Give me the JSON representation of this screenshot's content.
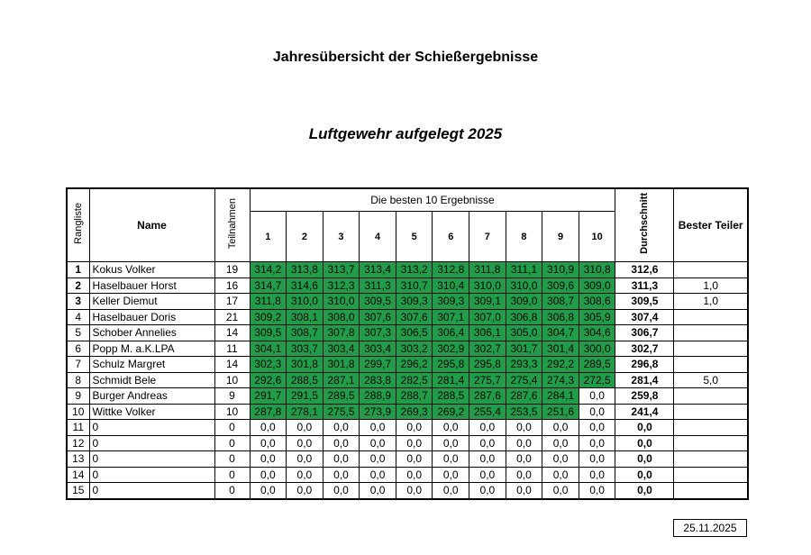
{
  "title": "Jahresübersicht der Schießergebnisse",
  "subtitle": "Luftgewehr aufgelegt 2025",
  "headers": {
    "rank": "Rangliste",
    "name": "Name",
    "participations": "Teilnahmen",
    "best10": "Die besten 10 Ergebnisse",
    "cols": [
      "1",
      "2",
      "3",
      "4",
      "5",
      "6",
      "7",
      "8",
      "9",
      "10"
    ],
    "average": "Durchschnitt",
    "best_teiler": "Bester Teiler"
  },
  "highlight_color": "#1f9e4a",
  "rows": [
    {
      "rank": "1",
      "name": "Kokus Volker",
      "count": "19",
      "scores": [
        "314,2",
        "313,8",
        "313,7",
        "313,4",
        "313,2",
        "312,8",
        "311,8",
        "311,1",
        "310,9",
        "310,8"
      ],
      "avg": "312,6",
      "teiler": ""
    },
    {
      "rank": "2",
      "name": "Haselbauer Horst",
      "count": "16",
      "scores": [
        "314,7",
        "314,6",
        "312,3",
        "311,3",
        "310,7",
        "310,4",
        "310,0",
        "310,0",
        "309,6",
        "309,0"
      ],
      "avg": "311,3",
      "teiler": "1,0"
    },
    {
      "rank": "3",
      "name": "Keller Diemut",
      "count": "17",
      "scores": [
        "311,8",
        "310,0",
        "310,0",
        "309,5",
        "309,3",
        "309,3",
        "309,1",
        "309,0",
        "308,7",
        "308,6"
      ],
      "avg": "309,5",
      "teiler": "1,0"
    },
    {
      "rank": "4",
      "name": "Haselbauer Doris",
      "count": "21",
      "scores": [
        "309,2",
        "308,1",
        "308,0",
        "307,6",
        "307,6",
        "307,1",
        "307,0",
        "306,8",
        "306,8",
        "305,9"
      ],
      "avg": "307,4",
      "teiler": ""
    },
    {
      "rank": "5",
      "name": "Schober Annelies",
      "count": "14",
      "scores": [
        "309,5",
        "308,7",
        "307,8",
        "307,3",
        "306,5",
        "306,4",
        "306,1",
        "305,0",
        "304,7",
        "304,6"
      ],
      "avg": "306,7",
      "teiler": ""
    },
    {
      "rank": "6",
      "name": "Popp M. a.K.LPA",
      "count": "11",
      "scores": [
        "304,1",
        "303,7",
        "303,4",
        "303,4",
        "303,2",
        "302,9",
        "302,7",
        "301,7",
        "301,4",
        "300,0"
      ],
      "avg": "302,7",
      "teiler": ""
    },
    {
      "rank": "7",
      "name": "Schulz Margret",
      "count": "14",
      "scores": [
        "302,3",
        "301,8",
        "301,8",
        "299,7",
        "296,2",
        "295,8",
        "295,8",
        "293,3",
        "292,2",
        "289,5"
      ],
      "avg": "296,8",
      "teiler": ""
    },
    {
      "rank": "8",
      "name": "Schmidt Bele",
      "count": "10",
      "scores": [
        "292,6",
        "288,5",
        "287,1",
        "283,8",
        "282,5",
        "281,4",
        "275,7",
        "275,4",
        "274,3",
        "272,5"
      ],
      "avg": "281,4",
      "teiler": "5,0"
    },
    {
      "rank": "9",
      "name": "Burger Andreas",
      "count": "9",
      "scores": [
        "291,7",
        "291,5",
        "289,5",
        "288,9",
        "288,7",
        "288,5",
        "287,6",
        "287,6",
        "284,1",
        "0,0"
      ],
      "avg": "259,8",
      "teiler": ""
    },
    {
      "rank": "10",
      "name": "Wittke Volker",
      "count": "10",
      "scores": [
        "287,8",
        "278,1",
        "275,5",
        "273,9",
        "269,3",
        "269,2",
        "255,4",
        "253,5",
        "251,6",
        "0,0"
      ],
      "avg": "241,4",
      "teiler": ""
    },
    {
      "rank": "11",
      "name": "0",
      "count": "0",
      "scores": [
        "0,0",
        "0,0",
        "0,0",
        "0,0",
        "0,0",
        "0,0",
        "0,0",
        "0,0",
        "0,0",
        "0,0"
      ],
      "avg": "0,0",
      "teiler": ""
    },
    {
      "rank": "12",
      "name": "0",
      "count": "0",
      "scores": [
        "0,0",
        "0,0",
        "0,0",
        "0,0",
        "0,0",
        "0,0",
        "0,0",
        "0,0",
        "0,0",
        "0,0"
      ],
      "avg": "0,0",
      "teiler": ""
    },
    {
      "rank": "13",
      "name": "0",
      "count": "0",
      "scores": [
        "0,0",
        "0,0",
        "0,0",
        "0,0",
        "0,0",
        "0,0",
        "0,0",
        "0,0",
        "0,0",
        "0,0"
      ],
      "avg": "0,0",
      "teiler": ""
    },
    {
      "rank": "14",
      "name": "0",
      "count": "0",
      "scores": [
        "0,0",
        "0,0",
        "0,0",
        "0,0",
        "0,0",
        "0,0",
        "0,0",
        "0,0",
        "0,0",
        "0,0"
      ],
      "avg": "0,0",
      "teiler": ""
    },
    {
      "rank": "15",
      "name": "0",
      "count": "0",
      "scores": [
        "0,0",
        "0,0",
        "0,0",
        "0,0",
        "0,0",
        "0,0",
        "0,0",
        "0,0",
        "0,0",
        "0,0"
      ],
      "avg": "0,0",
      "teiler": ""
    }
  ],
  "date": "25.11.2025"
}
